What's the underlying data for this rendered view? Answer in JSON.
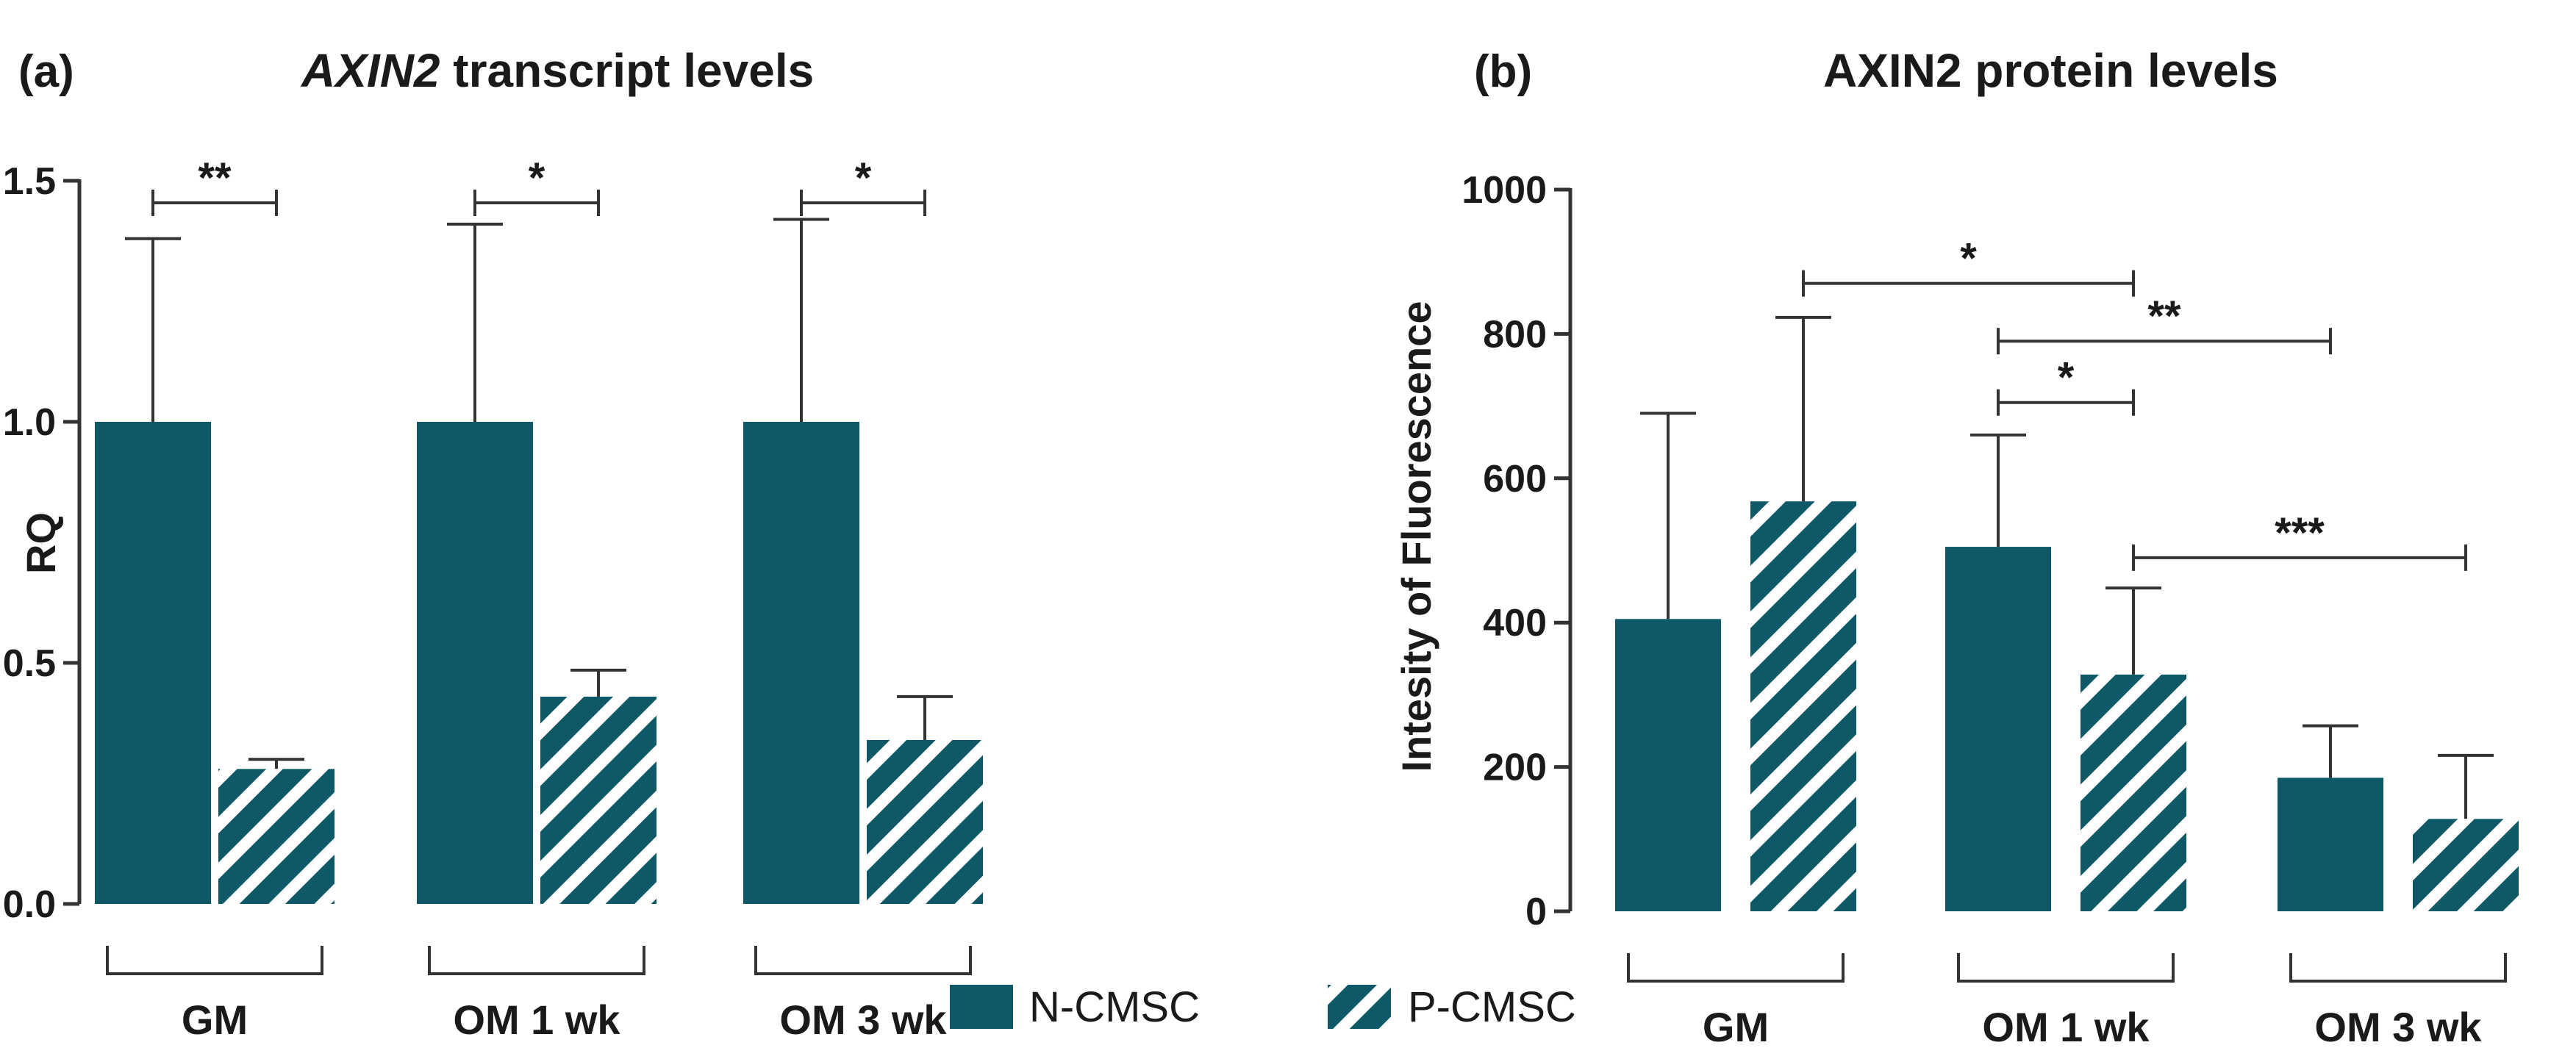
{
  "colors": {
    "bar_fill": "#0e5868",
    "axis": "#333333",
    "text": "#1a1a1a",
    "background": "#ffffff"
  },
  "legend": {
    "items": [
      {
        "name": "N-CMSC",
        "pattern": "solid"
      },
      {
        "name": "P-CMSC",
        "pattern": "diagonal-stripes"
      }
    ]
  },
  "chart_data": [
    {
      "type": "bar",
      "panel_label": "(a)",
      "title_italic": "AXIN2",
      "title_rest": " transcript levels",
      "xlabel": "",
      "ylabel": "RQ",
      "ylim": [
        0,
        1.5
      ],
      "yticks": [
        "0.0",
        "0.5",
        "1.0",
        "1.5"
      ],
      "ytick_values": [
        0,
        0.5,
        1.0,
        1.5
      ],
      "categories": [
        "GM",
        "OM 1 wk",
        "OM 3 wk"
      ],
      "series": [
        {
          "name": "N-CMSC",
          "values": [
            1.0,
            1.0,
            1.0
          ],
          "errors": [
            0.38,
            0.41,
            0.42
          ]
        },
        {
          "name": "P-CMSC",
          "values": [
            0.28,
            0.43,
            0.34
          ],
          "errors": [
            0.02,
            0.055,
            0.09
          ]
        }
      ],
      "significance": [
        {
          "from": [
            0,
            0
          ],
          "to": [
            0,
            1
          ],
          "label": "**"
        },
        {
          "from": [
            1,
            0
          ],
          "to": [
            1,
            1
          ],
          "label": "*"
        },
        {
          "from": [
            2,
            0
          ],
          "to": [
            2,
            1
          ],
          "label": "*"
        }
      ]
    },
    {
      "type": "bar",
      "panel_label": "(b)",
      "title_italic": "",
      "title_rest": "AXIN2 protein levels",
      "xlabel": "",
      "ylabel": "Intesity of Fluorescence",
      "ylim": [
        0,
        1000
      ],
      "yticks": [
        "0",
        "200",
        "400",
        "600",
        "800",
        "1000"
      ],
      "ytick_values": [
        0,
        200,
        400,
        600,
        800,
        1000
      ],
      "categories": [
        "GM",
        "OM 1 wk",
        "OM 3 wk"
      ],
      "series": [
        {
          "name": "N-CMSC",
          "values": [
            405,
            505,
            185
          ],
          "errors": [
            285,
            155,
            72
          ]
        },
        {
          "name": "P-CMSC",
          "values": [
            568,
            328,
            128
          ],
          "errors": [
            255,
            120,
            88
          ]
        }
      ],
      "significance": [
        {
          "from": [
            0,
            1
          ],
          "to": [
            1,
            1
          ],
          "label": "*",
          "at": 870
        },
        {
          "from": [
            1,
            0
          ],
          "to": [
            2,
            0
          ],
          "label": "**",
          "at": 790
        },
        {
          "from": [
            1,
            0
          ],
          "to": [
            1,
            1
          ],
          "label": "*",
          "at": 705
        },
        {
          "from": [
            1,
            1
          ],
          "to": [
            2,
            1
          ],
          "label": "***",
          "at": 490
        }
      ]
    }
  ]
}
